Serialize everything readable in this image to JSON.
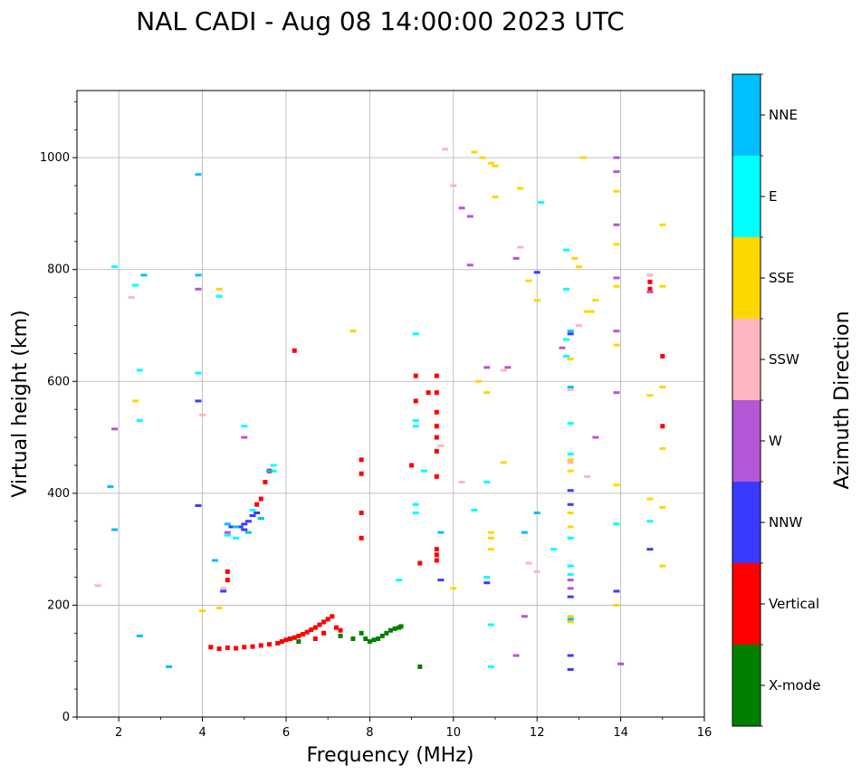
{
  "chart_data": {
    "type": "scatter",
    "title": "NAL CADI - Aug 08 14:00:00 2023 UTC",
    "xlabel": "Frequency (MHz)",
    "ylabel": "Virtual height (km)",
    "xlim": [
      1,
      16
    ],
    "ylim": [
      0,
      1120
    ],
    "xticks": [
      2,
      4,
      6,
      8,
      10,
      12,
      14,
      16
    ],
    "yticks": [
      0,
      200,
      400,
      600,
      800,
      1000
    ],
    "grid": true,
    "colorbar": {
      "title": "Azimuth Direction",
      "categories": [
        {
          "name": "X-mode",
          "color": "#008000"
        },
        {
          "name": "Vertical",
          "color": "#ff0000"
        },
        {
          "name": "NNW",
          "color": "#3a3aff"
        },
        {
          "name": "W",
          "color": "#b556d6"
        },
        {
          "name": "SSW",
          "color": "#ffb6c1"
        },
        {
          "name": "SSE",
          "color": "#ffd700"
        },
        {
          "name": "E",
          "color": "#00ffff"
        },
        {
          "name": "NNE",
          "color": "#00bfff"
        }
      ]
    },
    "series": [
      {
        "name": "X-mode",
        "points": [
          [
            7.8,
            150
          ],
          [
            7.9,
            140
          ],
          [
            8.0,
            135
          ],
          [
            8.1,
            138
          ],
          [
            8.2,
            140
          ],
          [
            8.3,
            145
          ],
          [
            8.4,
            150
          ],
          [
            8.5,
            155
          ],
          [
            8.6,
            158
          ],
          [
            8.7,
            160
          ],
          [
            8.75,
            162
          ],
          [
            9.2,
            90
          ],
          [
            6.1,
            140
          ],
          [
            6.3,
            135
          ],
          [
            7.3,
            145
          ],
          [
            7.6,
            140
          ]
        ]
      },
      {
        "name": "Vertical",
        "points": [
          [
            4.2,
            125
          ],
          [
            4.4,
            122
          ],
          [
            4.6,
            124
          ],
          [
            4.8,
            123
          ],
          [
            5.0,
            125
          ],
          [
            5.2,
            126
          ],
          [
            5.4,
            128
          ],
          [
            5.6,
            130
          ],
          [
            5.8,
            132
          ],
          [
            5.9,
            135
          ],
          [
            6.0,
            138
          ],
          [
            6.1,
            140
          ],
          [
            6.2,
            142
          ],
          [
            6.3,
            145
          ],
          [
            6.4,
            148
          ],
          [
            6.5,
            152
          ],
          [
            6.6,
            156
          ],
          [
            6.7,
            160
          ],
          [
            6.8,
            165
          ],
          [
            6.9,
            170
          ],
          [
            7.0,
            175
          ],
          [
            7.1,
            180
          ],
          [
            7.2,
            160
          ],
          [
            7.3,
            155
          ],
          [
            6.7,
            140
          ],
          [
            6.9,
            150
          ],
          [
            5.6,
            440
          ],
          [
            5.5,
            420
          ],
          [
            5.4,
            390
          ],
          [
            5.3,
            380
          ],
          [
            6.2,
            655
          ],
          [
            7.8,
            460
          ],
          [
            7.8,
            320
          ],
          [
            7.8,
            365
          ],
          [
            7.8,
            435
          ],
          [
            9.0,
            450
          ],
          [
            9.1,
            610
          ],
          [
            9.1,
            565
          ],
          [
            9.2,
            275
          ],
          [
            9.4,
            580
          ],
          [
            9.6,
            610
          ],
          [
            9.6,
            580
          ],
          [
            9.6,
            545
          ],
          [
            9.6,
            520
          ],
          [
            9.6,
            500
          ],
          [
            9.6,
            475
          ],
          [
            9.6,
            430
          ],
          [
            9.6,
            300
          ],
          [
            9.6,
            290
          ],
          [
            9.6,
            280
          ],
          [
            15.0,
            645
          ],
          [
            14.7,
            778
          ],
          [
            14.7,
            765
          ],
          [
            15.0,
            520
          ],
          [
            4.6,
            260
          ],
          [
            4.6,
            245
          ]
        ]
      },
      {
        "name": "NNW",
        "points": [
          [
            4.9,
            340
          ],
          [
            5.0,
            345
          ],
          [
            5.1,
            350
          ],
          [
            5.2,
            360
          ],
          [
            5.3,
            365
          ],
          [
            5.0,
            335
          ],
          [
            4.7,
            340
          ],
          [
            9.7,
            245
          ],
          [
            10.8,
            240
          ],
          [
            12.0,
            795
          ],
          [
            13.9,
            225
          ],
          [
            12.8,
            405
          ],
          [
            12.8,
            380
          ],
          [
            12.8,
            215
          ],
          [
            12.8,
            110
          ],
          [
            12.8,
            85
          ],
          [
            12.8,
            685
          ],
          [
            14.7,
            300
          ],
          [
            3.9,
            565
          ],
          [
            3.9,
            378
          ],
          [
            4.5,
            225
          ]
        ]
      },
      {
        "name": "W",
        "points": [
          [
            1.9,
            515
          ],
          [
            3.9,
            765
          ],
          [
            5.0,
            500
          ],
          [
            4.6,
            330
          ],
          [
            10.2,
            910
          ],
          [
            10.4,
            895
          ],
          [
            10.4,
            808
          ],
          [
            10.8,
            625
          ],
          [
            11.3,
            625
          ],
          [
            11.5,
            820
          ],
          [
            12.6,
            660
          ],
          [
            13.9,
            1000
          ],
          [
            13.9,
            975
          ],
          [
            13.9,
            880
          ],
          [
            13.9,
            785
          ],
          [
            13.9,
            690
          ],
          [
            13.9,
            580
          ],
          [
            14.7,
            790
          ],
          [
            14.7,
            760
          ],
          [
            14.0,
            95
          ],
          [
            13.4,
            500
          ],
          [
            12.8,
            245
          ],
          [
            12.8,
            230
          ],
          [
            11.5,
            110
          ],
          [
            11.7,
            180
          ]
        ]
      },
      {
        "name": "SSW",
        "points": [
          [
            1.5,
            235
          ],
          [
            2.3,
            750
          ],
          [
            4.0,
            540
          ],
          [
            4.5,
            230
          ],
          [
            7.6,
            690
          ],
          [
            9.8,
            1015
          ],
          [
            10.0,
            950
          ],
          [
            10.2,
            420
          ],
          [
            11.2,
            620
          ],
          [
            11.6,
            840
          ],
          [
            11.8,
            275
          ],
          [
            12.8,
            585
          ],
          [
            12.8,
            455
          ],
          [
            13.0,
            700
          ],
          [
            13.2,
            430
          ],
          [
            14.7,
            790
          ],
          [
            12.0,
            260
          ],
          [
            9.7,
            485
          ]
        ]
      },
      {
        "name": "SSE",
        "points": [
          [
            2.4,
            565
          ],
          [
            4.0,
            190
          ],
          [
            4.4,
            765
          ],
          [
            4.4,
            195
          ],
          [
            7.6,
            690
          ],
          [
            10.5,
            1010
          ],
          [
            10.7,
            1000
          ],
          [
            10.9,
            990
          ],
          [
            11.0,
            985
          ],
          [
            11.0,
            930
          ],
          [
            11.6,
            945
          ],
          [
            11.8,
            780
          ],
          [
            12.0,
            745
          ],
          [
            12.9,
            820
          ],
          [
            13.0,
            805
          ],
          [
            13.1,
            1000
          ],
          [
            13.2,
            725
          ],
          [
            13.3,
            725
          ],
          [
            13.4,
            745
          ],
          [
            13.9,
            940
          ],
          [
            13.9,
            845
          ],
          [
            13.9,
            770
          ],
          [
            13.9,
            665
          ],
          [
            13.9,
            415
          ],
          [
            13.9,
            200
          ],
          [
            14.7,
            575
          ],
          [
            14.7,
            390
          ],
          [
            15.0,
            880
          ],
          [
            15.0,
            770
          ],
          [
            15.0,
            590
          ],
          [
            15.0,
            480
          ],
          [
            15.0,
            375
          ],
          [
            15.0,
            270
          ],
          [
            10.6,
            600
          ],
          [
            10.8,
            580
          ],
          [
            10.9,
            330
          ],
          [
            10.9,
            320
          ],
          [
            10.9,
            300
          ],
          [
            12.8,
            640
          ],
          [
            12.8,
            460
          ],
          [
            12.8,
            440
          ],
          [
            12.8,
            365
          ],
          [
            12.8,
            340
          ],
          [
            12.8,
            180
          ],
          [
            12.8,
            170
          ],
          [
            11.2,
            455
          ],
          [
            10.0,
            230
          ]
        ]
      },
      {
        "name": "E",
        "points": [
          [
            1.9,
            805
          ],
          [
            2.5,
            620
          ],
          [
            2.5,
            530
          ],
          [
            2.4,
            772
          ],
          [
            3.9,
            615
          ],
          [
            4.4,
            752
          ],
          [
            5.0,
            520
          ],
          [
            5.2,
            370
          ],
          [
            5.4,
            355
          ],
          [
            5.7,
            450
          ],
          [
            5.7,
            440
          ],
          [
            8.7,
            245
          ],
          [
            9.1,
            685
          ],
          [
            9.1,
            530
          ],
          [
            9.1,
            520
          ],
          [
            9.3,
            440
          ],
          [
            9.1,
            380
          ],
          [
            9.1,
            365
          ],
          [
            10.5,
            370
          ],
          [
            10.8,
            420
          ],
          [
            10.8,
            250
          ],
          [
            10.9,
            165
          ],
          [
            10.9,
            90
          ],
          [
            12.1,
            920
          ],
          [
            12.4,
            300
          ],
          [
            12.7,
            835
          ],
          [
            12.7,
            765
          ],
          [
            12.7,
            675
          ],
          [
            12.7,
            645
          ],
          [
            12.8,
            525
          ],
          [
            12.8,
            470
          ],
          [
            12.8,
            320
          ],
          [
            12.8,
            270
          ],
          [
            12.8,
            255
          ],
          [
            13.9,
            345
          ],
          [
            14.7,
            350
          ],
          [
            4.6,
            325
          ],
          [
            4.8,
            320
          ]
        ]
      },
      {
        "name": "NNE",
        "points": [
          [
            1.8,
            412
          ],
          [
            1.9,
            335
          ],
          [
            2.6,
            790
          ],
          [
            3.9,
            970
          ],
          [
            3.9,
            790
          ],
          [
            4.3,
            280
          ],
          [
            4.6,
            345
          ],
          [
            4.8,
            340
          ],
          [
            5.1,
            330
          ],
          [
            5.4,
            355
          ],
          [
            5.6,
            440
          ],
          [
            12.8,
            690
          ],
          [
            12.8,
            590
          ],
          [
            12.8,
            175
          ],
          [
            9.7,
            330
          ],
          [
            12.0,
            365
          ],
          [
            11.7,
            330
          ],
          [
            2.5,
            145
          ],
          [
            3.2,
            90
          ]
        ]
      }
    ]
  }
}
